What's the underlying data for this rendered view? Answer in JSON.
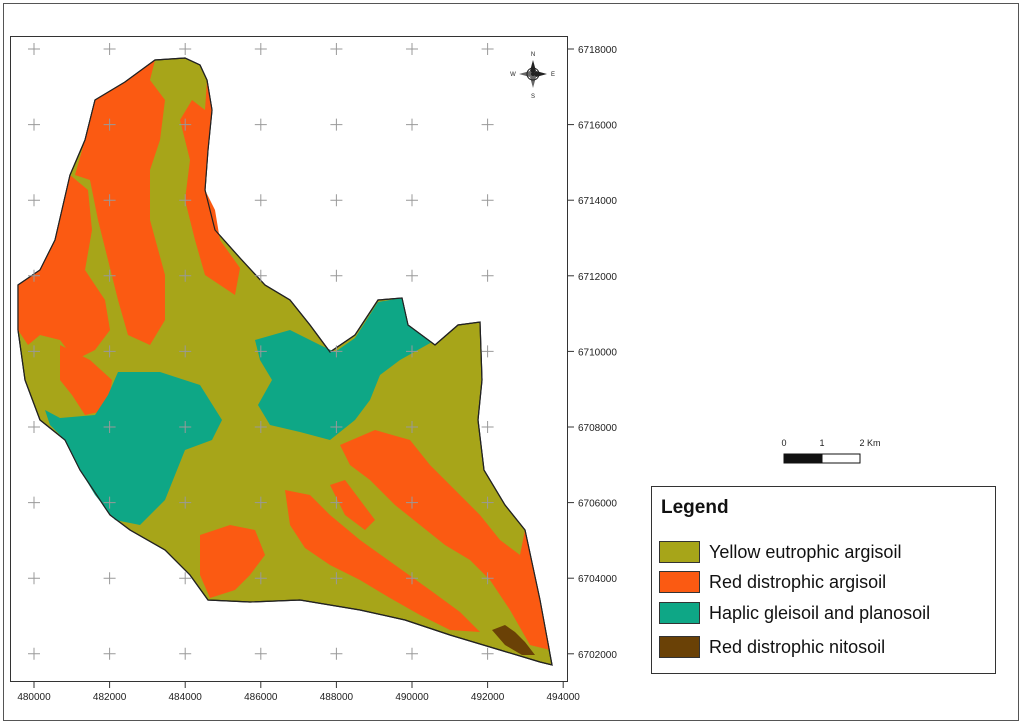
{
  "legend": {
    "title": "Legend",
    "items": [
      {
        "label": "Yellow eutrophic argisoil",
        "color": "#a7a519"
      },
      {
        "label": "Red distrophic argisoil",
        "color": "#fb5a12"
      },
      {
        "label": "Haplic gleisoil and planosoil",
        "color": "#0ea786"
      },
      {
        "label": "Red distrophic nitosoil",
        "color": "#6a4106"
      }
    ]
  },
  "axes": {
    "x_labels": [
      "480000",
      "482000",
      "484000",
      "486000",
      "488000",
      "490000",
      "492000",
      "494000"
    ],
    "y_labels": [
      "6718000",
      "6716000",
      "6714000",
      "6712000",
      "6710000",
      "6708000",
      "6706000",
      "6704000",
      "6702000"
    ]
  },
  "scale_bar": {
    "ticks": [
      "0",
      "1",
      "2 Km"
    ]
  },
  "north_arrow": {
    "icon": "compass-rose-icon",
    "letters": [
      "N",
      "E",
      "S",
      "W"
    ]
  }
}
